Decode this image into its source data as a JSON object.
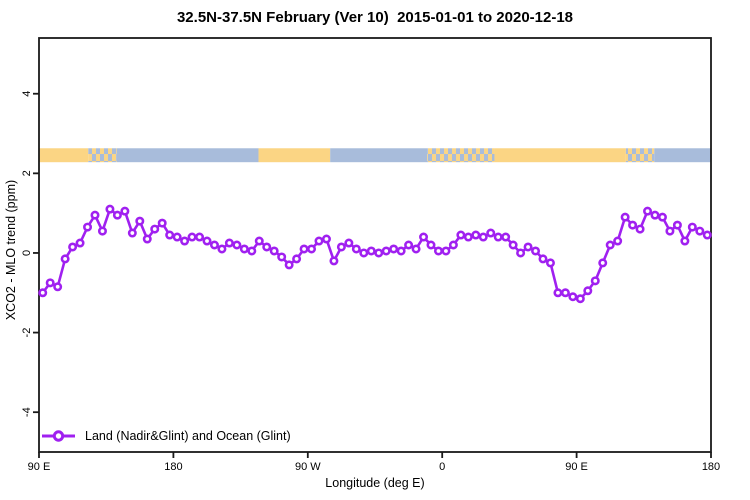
{
  "title": "32.5N-37.5N February (Ver 10)  2015-01-01 to 2020-12-18",
  "chart_data": {
    "type": "line",
    "title": "32.5N-37.5N February (Ver 10)  2015-01-01 to 2020-12-18",
    "xlabel": "Longitude (deg E)",
    "ylabel": "XCO2 - MLO trend (ppm)",
    "xlim": [
      90,
      540
    ],
    "ylim": [
      -5.0,
      5.4
    ],
    "grid": false,
    "background_color": "#ffffff",
    "axis_color": "#1a1a1a",
    "x_ticks": [
      {
        "pos": 90,
        "label": "90 E"
      },
      {
        "pos": 180,
        "label": "180"
      },
      {
        "pos": 270,
        "label": "90 W"
      },
      {
        "pos": 360,
        "label": "0"
      },
      {
        "pos": 450,
        "label": "90 E"
      },
      {
        "pos": 540,
        "label": "180"
      }
    ],
    "y_ticks": [
      {
        "pos": 4,
        "label": "4"
      },
      {
        "pos": 2,
        "label": "2"
      },
      {
        "pos": 0,
        "label": "0"
      },
      {
        "pos": -2,
        "label": "-2"
      },
      {
        "pos": -4,
        "label": "-4"
      }
    ],
    "series": [
      {
        "name": "Land (Nadir&Glint) and Ocean (Glint)",
        "color": "#A020F0",
        "marker": "open-circle",
        "x": [
          92.5,
          97.5,
          102.5,
          107.5,
          112.5,
          117.5,
          122.5,
          127.5,
          132.5,
          137.5,
          142.5,
          147.5,
          152.5,
          157.5,
          162.5,
          167.5,
          172.5,
          177.5,
          182.5,
          187.5,
          192.5,
          197.5,
          202.5,
          207.5,
          212.5,
          217.5,
          222.5,
          227.5,
          232.5,
          237.5,
          242.5,
          247.5,
          252.5,
          257.5,
          262.5,
          267.5,
          272.5,
          277.5,
          282.5,
          287.5,
          292.5,
          297.5,
          302.5,
          307.5,
          312.5,
          317.5,
          322.5,
          327.5,
          332.5,
          337.5,
          342.5,
          347.5,
          352.5,
          357.5,
          362.5,
          367.5,
          372.5,
          377.5,
          382.5,
          387.5,
          392.5,
          397.5,
          402.5,
          407.5,
          412.5,
          417.5,
          422.5,
          427.5,
          432.5,
          437.5,
          442.5,
          447.5,
          452.5,
          457.5,
          462.5,
          467.5,
          472.5,
          477.5,
          482.5,
          487.5,
          492.5,
          497.5,
          502.5,
          507.5,
          512.5,
          517.5,
          522.5,
          527.5,
          532.5,
          537.5
        ],
        "y": [
          -1.0,
          -0.75,
          -0.85,
          -0.15,
          0.15,
          0.25,
          0.65,
          0.95,
          0.55,
          1.1,
          0.95,
          1.05,
          0.5,
          0.8,
          0.35,
          0.6,
          0.75,
          0.45,
          0.4,
          0.3,
          0.4,
          0.4,
          0.3,
          0.2,
          0.1,
          0.25,
          0.2,
          0.1,
          0.05,
          0.3,
          0.15,
          0.05,
          -0.1,
          -0.3,
          -0.15,
          0.1,
          0.1,
          0.3,
          0.35,
          -0.2,
          0.15,
          0.25,
          0.1,
          0.0,
          0.05,
          0.0,
          0.05,
          0.1,
          0.05,
          0.2,
          0.1,
          0.4,
          0.2,
          0.05,
          0.05,
          0.2,
          0.45,
          0.4,
          0.45,
          0.4,
          0.5,
          0.4,
          0.4,
          0.2,
          0.0,
          0.15,
          0.05,
          -0.15,
          -0.25,
          -1.0,
          -1.0,
          -1.1,
          -1.15,
          -0.95,
          -0.7,
          -0.25,
          0.2,
          0.3,
          0.9,
          0.7,
          0.6,
          1.05,
          0.95,
          0.9,
          0.55,
          0.7,
          0.3,
          0.65,
          0.55,
          0.45
        ]
      }
    ],
    "map_strip": {
      "description": "land-ocean band along latitude 32.5N-37.5N",
      "value_top": 2.63,
      "value_bottom": 2.28,
      "land_color": "#FBD584",
      "ocean_color": "#A8BCDB",
      "segments": [
        {
          "from": 90,
          "to": 123,
          "type": "land"
        },
        {
          "from": 123,
          "to": 142,
          "type": "coast"
        },
        {
          "from": 142,
          "to": 237,
          "type": "ocean"
        },
        {
          "from": 237,
          "to": 285,
          "type": "land"
        },
        {
          "from": 285,
          "to": 350,
          "type": "ocean"
        },
        {
          "from": 350,
          "to": 395,
          "type": "coast"
        },
        {
          "from": 395,
          "to": 483,
          "type": "land"
        },
        {
          "from": 483,
          "to": 502,
          "type": "coast"
        },
        {
          "from": 502,
          "to": 540,
          "type": "ocean"
        }
      ]
    },
    "legend": {
      "label": "Land (Nadir&Glint) and Ocean (Glint)",
      "position": "bottom-left"
    }
  }
}
